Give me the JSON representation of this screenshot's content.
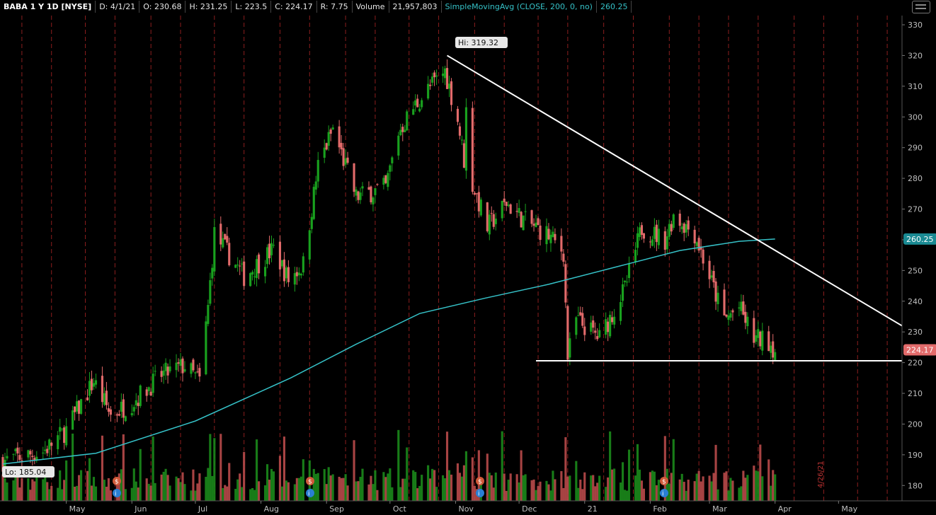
{
  "header": {
    "symbol": "BABA 1 Y 1D [NYSE]",
    "date": "D: 4/1/21",
    "open": "O: 230.68",
    "high": "H: 231.25",
    "low": "L: 223.5",
    "close": "C: 224.17",
    "range": "R: 7.75",
    "volume_label": "Volume",
    "volume_value": "21,957,803",
    "sma_label": "SimpleMovingAvg (CLOSE, 200, 0, no)",
    "sma_value": "260.25"
  },
  "icons": {
    "window": "menu-icon",
    "event": "info-circle-icon",
    "dividend": "dollar-circle-icon"
  },
  "colors": {
    "up": "#19a11e",
    "down": "#e26a6a",
    "sma": "#35c1c7",
    "trendline": "#ffffff",
    "grid": "#8b1e1e",
    "volume_up": "#1b8a1b",
    "volume_down": "#b94a4a"
  },
  "chart_data": {
    "type": "candlestick",
    "title": "",
    "y_axis": {
      "ticks": [
        180,
        190,
        200,
        210,
        220,
        230,
        240,
        250,
        260,
        270,
        280,
        290,
        300,
        310,
        320,
        330
      ],
      "range": [
        175,
        333
      ],
      "side": "right"
    },
    "x_axis": {
      "labels": [
        "May",
        "Jun",
        "Jul",
        "Aug",
        "Sep",
        "Oct",
        "Nov",
        "Dec",
        "21",
        "Feb",
        "Mar",
        "Apr",
        "May"
      ],
      "range_dates": [
        "2020-04-01",
        "2021-05-31"
      ]
    },
    "grid": "vertical dashed event lines",
    "price_labels": {
      "last": "224.17",
      "sma": "260.25"
    },
    "annotations": {
      "high": "Hi: 319.32",
      "low": "Lo: 185.04"
    },
    "event_labels": [
      "4/26/21"
    ],
    "anchors": [
      [
        "2020-04-01",
        188
      ],
      [
        "2020-04-20",
        191
      ],
      [
        "2020-05-01",
        198
      ],
      [
        "2020-05-14",
        214
      ],
      [
        "2020-05-22",
        203
      ],
      [
        "2020-06-01",
        207
      ],
      [
        "2020-06-15",
        216
      ],
      [
        "2020-06-26",
        219
      ],
      [
        "2020-07-03",
        214
      ],
      [
        "2020-07-07",
        238
      ],
      [
        "2020-07-10",
        262
      ],
      [
        "2020-07-24",
        248
      ],
      [
        "2020-08-07",
        257
      ],
      [
        "2020-08-14",
        247
      ],
      [
        "2020-08-21",
        252
      ],
      [
        "2020-08-28",
        284
      ],
      [
        "2020-09-04",
        296
      ],
      [
        "2020-09-15",
        274
      ],
      [
        "2020-09-29",
        277
      ],
      [
        "2020-10-05",
        295
      ],
      [
        "2020-10-12",
        303
      ],
      [
        "2020-10-19",
        309
      ],
      [
        "2020-10-27",
        315
      ],
      [
        "2020-11-02",
        299
      ],
      [
        "2020-11-05",
        286
      ],
      [
        "2020-11-06",
        302
      ],
      [
        "2020-11-09",
        278
      ],
      [
        "2020-11-16",
        264
      ],
      [
        "2020-11-25",
        272
      ],
      [
        "2020-12-04",
        266
      ],
      [
        "2020-12-14",
        262
      ],
      [
        "2020-12-22",
        256
      ],
      [
        "2020-12-24",
        222
      ],
      [
        "2020-12-28",
        234
      ],
      [
        "2021-01-08",
        228
      ],
      [
        "2021-01-20",
        244
      ],
      [
        "2021-01-28",
        264
      ],
      [
        "2021-02-08",
        260
      ],
      [
        "2021-02-12",
        268
      ],
      [
        "2021-02-22",
        262
      ],
      [
        "2021-03-01",
        248
      ],
      [
        "2021-03-08",
        234
      ],
      [
        "2021-03-15",
        238
      ],
      [
        "2021-03-22",
        228
      ],
      [
        "2021-03-29",
        227
      ],
      [
        "2021-04-01",
        224.17
      ]
    ],
    "sma_200": [
      [
        "2020-04-01",
        187
      ],
      [
        "2020-05-15",
        190.5
      ],
      [
        "2020-07-01",
        201
      ],
      [
        "2020-08-15",
        215
      ],
      [
        "2020-09-15",
        226
      ],
      [
        "2020-10-15",
        236
      ],
      [
        "2020-11-15",
        241
      ],
      [
        "2020-12-15",
        245.5
      ],
      [
        "2021-01-15",
        251
      ],
      [
        "2021-02-15",
        256.5
      ],
      [
        "2021-03-15",
        259.5
      ],
      [
        "2021-04-01",
        260.25
      ]
    ],
    "trendlines": [
      {
        "from": [
          "2020-10-28",
          320
        ],
        "to": [
          "2021-05-31",
          232
        ]
      },
      {
        "from": [
          "2020-12-09",
          220.6
        ],
        "to": [
          "2021-05-31",
          220.6
        ]
      }
    ]
  }
}
